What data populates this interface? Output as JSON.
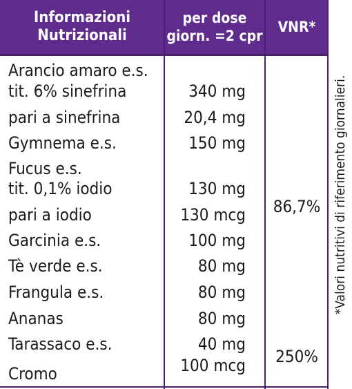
{
  "header": {
    "col1_line1": "Informazioni",
    "col1_line2": "Nutrizionali",
    "col2_line1": "per dose",
    "col2_line2": "giorn. =2 cpr",
    "col3": "VNR*"
  },
  "rows": [
    {
      "name_line1": "Arancio amaro e.s.",
      "name_line2": "tit. 6% sinefrina",
      "dose": "340 mg"
    },
    {
      "name": "pari a sinefrina",
      "dose": "20,4 mg"
    },
    {
      "name": "Gymnema e.s.",
      "dose": "150 mg"
    },
    {
      "name_line1": "Fucus e.s.",
      "name_line2": "tit. 0,1% iodio",
      "dose": "130 mg"
    },
    {
      "name": "pari a iodio",
      "dose": "130 mcg"
    },
    {
      "name": "Garcinia e.s.",
      "dose": "100 mg"
    },
    {
      "name": "Tè verde e.s.",
      "dose": "80 mg"
    },
    {
      "name": "Frangula e.s.",
      "dose": "80 mg"
    },
    {
      "name": "Ananas",
      "dose": "80 mg"
    },
    {
      "name": "Tarassaco e.s.",
      "dose": "40 mg"
    },
    {
      "name": "Cromo",
      "dose": "100 mcg"
    }
  ],
  "vnr": {
    "iodio": "86,7%",
    "cromo": "250%"
  },
  "footnote": "*Valori nutritivi di riferimento giornalieri."
}
